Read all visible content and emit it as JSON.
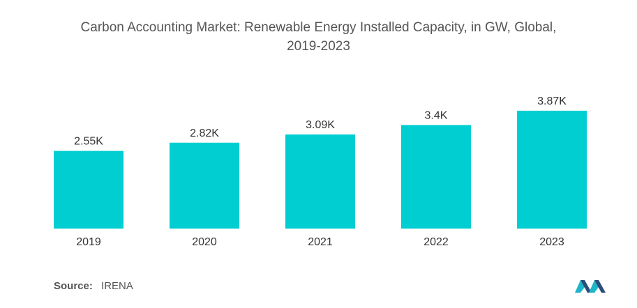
{
  "title_line1": "Carbon Accounting Market: Renewable Energy Installed Capacity, in GW, Global,",
  "title_line2": "2019-2023",
  "source": {
    "label": "Source:",
    "value": "IRENA"
  },
  "colors": {
    "bar": "#00CED1",
    "text": "#333333",
    "title": "#555555"
  },
  "chart_data": {
    "type": "bar",
    "title": "Carbon Accounting Market: Renewable Energy Installed Capacity, in GW, Global, 2019-2023",
    "categories": [
      "2019",
      "2020",
      "2021",
      "2022",
      "2023"
    ],
    "values": [
      2550,
      2820,
      3090,
      3400,
      3870
    ],
    "data_labels": [
      "2.55K",
      "2.82K",
      "3.09K",
      "3.4K",
      "3.87K"
    ],
    "ylim": [
      0,
      4000
    ],
    "grid": false,
    "legend": "none"
  }
}
